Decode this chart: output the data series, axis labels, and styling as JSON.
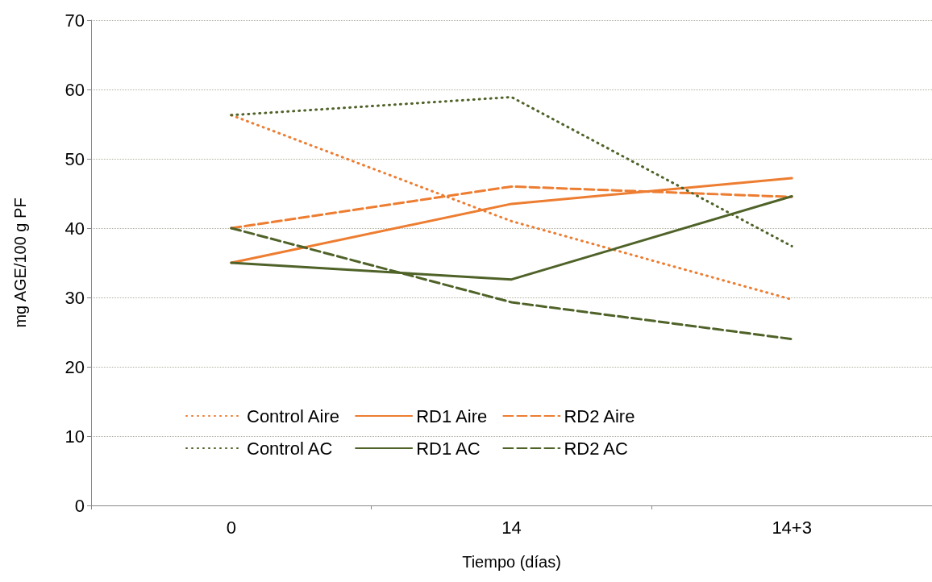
{
  "chart_data": {
    "type": "line",
    "xlabel": "Tiempo (días)",
    "ylabel": "mg AGE/100 g PF",
    "categories": [
      "0",
      "14",
      "14+3"
    ],
    "series": [
      {
        "name": "Control Aire",
        "color": "#ed7d31",
        "line_style": "dotted",
        "values": [
          56.3,
          41,
          29.7
        ]
      },
      {
        "name": "RD1 Aire",
        "color": "#ed7d31",
        "line_style": "solid",
        "values": [
          35,
          43.5,
          47.2
        ]
      },
      {
        "name": "RD2 Aire",
        "color": "#ed7d31",
        "line_style": "dashed",
        "values": [
          40,
          46,
          44.5
        ]
      },
      {
        "name": "Control AC",
        "color": "#4f6228",
        "line_style": "dotted",
        "values": [
          56.3,
          58.9,
          37.4
        ]
      },
      {
        "name": "RD1 AC",
        "color": "#4f6228",
        "line_style": "solid",
        "values": [
          35,
          32.6,
          44.6
        ]
      },
      {
        "name": "RD2 AC",
        "color": "#4f6228",
        "line_style": "dashed",
        "values": [
          40,
          29.3,
          24
        ]
      }
    ],
    "ylim": [
      0,
      70
    ],
    "yticks": [
      0,
      10,
      20,
      30,
      40,
      50,
      60,
      70
    ],
    "grid": "y",
    "legend": "bottom",
    "marker": "none"
  }
}
